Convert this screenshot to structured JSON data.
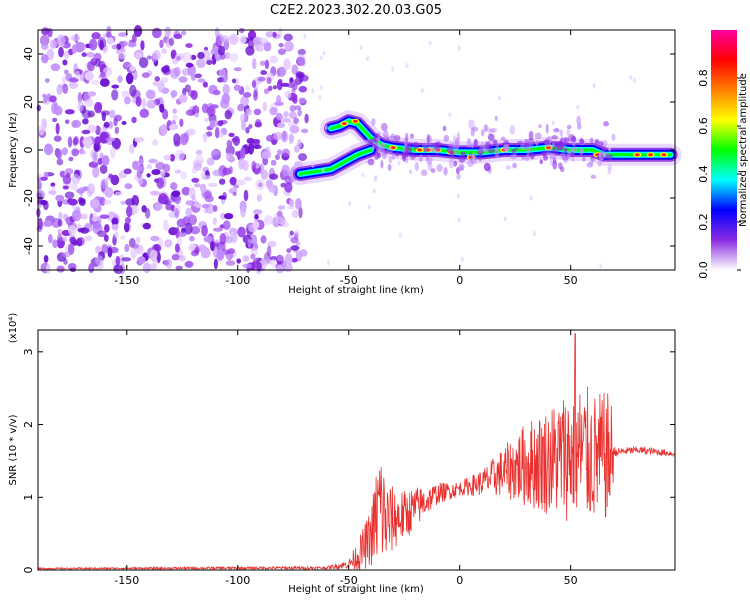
{
  "title": "C2E2.2023.302.20.03.G05",
  "chart_data": [
    {
      "type": "heatmap",
      "xlabel": "Height of straight line (km)",
      "ylabel": "Frequency (Hz)",
      "xlim": [
        -190,
        97
      ],
      "ylim": [
        -50,
        50
      ],
      "xticks": [
        -150,
        -100,
        -50,
        0,
        50
      ],
      "yticks": [
        -40,
        -20,
        0,
        20,
        40
      ],
      "colorbar": {
        "label": "Normalized spectral amplitude",
        "range": [
          0,
          1
        ],
        "ticks": [
          "0.0",
          "0.2",
          "0.4",
          "0.6",
          "0.8"
        ],
        "colors": [
          "#ffffff",
          "#8a2be2",
          "#0000ff",
          "#00ffff",
          "#00ff00",
          "#ffff00",
          "#ff8000",
          "#ff0000",
          "#ff00a0"
        ]
      },
      "noise_region_x": [
        -190,
        -70
      ],
      "signal_track": {
        "x": [
          -72,
          -65,
          -58,
          -54,
          -50,
          -46,
          -40,
          -35,
          -30,
          -20,
          -10,
          0,
          10,
          20,
          30,
          40,
          50,
          60,
          65,
          70,
          80,
          90,
          95
        ],
        "upper_branch_y": [
          null,
          null,
          9,
          10,
          12,
          11,
          5,
          2,
          1,
          0,
          0,
          -1,
          -1,
          0,
          0,
          1,
          0,
          0,
          -2,
          -2,
          -2,
          -2,
          -2
        ],
        "lower_branch_y": [
          -10,
          -9,
          -8,
          -6,
          -4,
          -2,
          0,
          null,
          null,
          null,
          null,
          null,
          null,
          null,
          null,
          null,
          null,
          null,
          null,
          null,
          null,
          null,
          null
        ]
      }
    },
    {
      "type": "line",
      "xlabel": "Height of straight line (km)",
      "ylabel": "SNR (10 * v/v)",
      "scale_label": "(x10⁴)",
      "xlim": [
        -190,
        97
      ],
      "ylim": [
        0,
        3.3
      ],
      "xticks": [
        -150,
        -100,
        -50,
        0,
        50
      ],
      "yticks": [
        0,
        1,
        2,
        3
      ],
      "color": "#e8302e",
      "envelope": {
        "x": [
          -190,
          -60,
          -50,
          -45,
          -40,
          -36,
          -33,
          -30,
          -25,
          -20,
          -15,
          -10,
          0,
          10,
          20,
          30,
          40,
          50,
          55,
          60,
          68,
          70,
          80,
          90,
          97
        ],
        "mean": [
          0.02,
          0.03,
          0.08,
          0.22,
          0.45,
          0.9,
          0.65,
          0.7,
          0.75,
          0.85,
          0.95,
          1.05,
          1.12,
          1.2,
          1.35,
          1.45,
          1.5,
          1.6,
          1.6,
          1.55,
          1.55,
          1.62,
          1.65,
          1.62,
          1.6
        ],
        "spread": [
          0.01,
          0.02,
          0.06,
          0.25,
          0.4,
          0.9,
          0.6,
          0.45,
          0.35,
          0.3,
          0.2,
          0.15,
          0.1,
          0.18,
          0.35,
          0.6,
          0.75,
          0.95,
          1.0,
          0.9,
          0.9,
          0.06,
          0.05,
          0.05,
          0.04
        ],
        "peak": {
          "x": 52,
          "y": 3.25
        }
      }
    }
  ]
}
